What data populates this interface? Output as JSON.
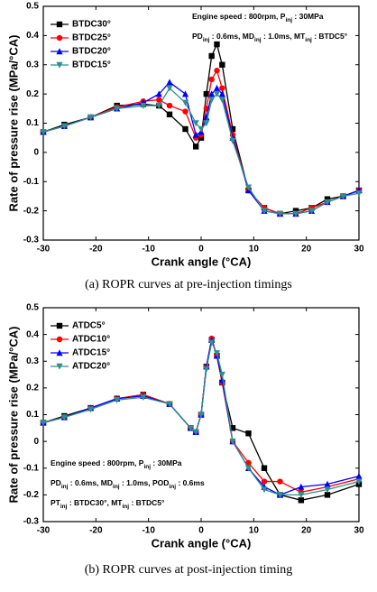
{
  "chart_data": [
    {
      "type": "line",
      "xlabel": "Crank angle (°CA)",
      "ylabel": "Rate of pressure rise (MPa/°CA)",
      "caption": "(a)  ROPR curves at pre-injection timings",
      "xlim": [
        -30,
        30
      ],
      "xticks": [
        -30,
        -20,
        -10,
        0,
        10,
        20,
        30
      ],
      "ylim": [
        -0.3,
        0.5
      ],
      "yticks": [
        -0.3,
        -0.2,
        -0.1,
        0.0,
        0.1,
        0.2,
        0.3,
        0.4,
        0.5
      ],
      "legend": "upper left",
      "annotation_corner": "upper right",
      "annotation": [
        [
          "Engine speed : 800rpm, P",
          "inj",
          " : 30MPa"
        ],
        [
          "PD",
          "inj",
          " : 0.6ms, MD",
          "inj",
          " : 1.0ms, MT",
          "inj",
          " : BTDC5°"
        ]
      ],
      "x": [
        -30,
        -26,
        -21,
        -16,
        -11,
        -8,
        -6,
        -3,
        -1,
        0,
        1,
        2,
        3,
        4,
        6,
        9,
        12,
        15,
        18,
        21,
        24,
        27,
        30
      ],
      "series": [
        {
          "name": "BTDC30°",
          "color": "#000000",
          "marker": "square",
          "values": [
            0.07,
            0.095,
            0.12,
            0.16,
            0.165,
            0.16,
            0.13,
            0.08,
            0.02,
            0.05,
            0.2,
            0.33,
            0.37,
            0.3,
            0.08,
            -0.13,
            -0.19,
            -0.21,
            -0.2,
            -0.19,
            -0.16,
            -0.15,
            -0.13
          ]
        },
        {
          "name": "BTDC25°",
          "color": "#ff0000",
          "marker": "circle",
          "values": [
            0.07,
            0.09,
            0.12,
            0.155,
            0.175,
            0.18,
            0.16,
            0.14,
            0.05,
            0.06,
            0.15,
            0.25,
            0.28,
            0.22,
            0.06,
            -0.13,
            -0.19,
            -0.21,
            -0.21,
            -0.19,
            -0.17,
            -0.15,
            -0.13
          ]
        },
        {
          "name": "BTDC20°",
          "color": "#0000ff",
          "marker": "triangle-up",
          "values": [
            0.07,
            0.09,
            0.12,
            0.15,
            0.17,
            0.2,
            0.24,
            0.2,
            0.06,
            0.07,
            0.12,
            0.2,
            0.22,
            0.2,
            0.05,
            -0.13,
            -0.2,
            -0.21,
            -0.21,
            -0.2,
            -0.17,
            -0.15,
            -0.13
          ]
        },
        {
          "name": "BTDC15°",
          "color": "#2f8f8f",
          "marker": "triangle-down",
          "values": [
            0.07,
            0.09,
            0.12,
            0.15,
            0.16,
            0.16,
            0.22,
            0.17,
            0.1,
            0.08,
            0.1,
            0.18,
            0.2,
            0.18,
            0.04,
            -0.12,
            -0.2,
            -0.21,
            -0.21,
            -0.2,
            -0.17,
            -0.15,
            -0.14
          ]
        }
      ]
    },
    {
      "type": "line",
      "xlabel": "Crank angle (°CA)",
      "ylabel": "Rate of pressure rise (MPa/°CA)",
      "caption": "(b)  ROPR curves at post-injection timing",
      "xlim": [
        -30,
        30
      ],
      "xticks": [
        -30,
        -20,
        -10,
        0,
        10,
        20,
        30
      ],
      "ylim": [
        -0.3,
        0.5
      ],
      "yticks": [
        -0.3,
        -0.2,
        -0.1,
        0.0,
        0.1,
        0.2,
        0.3,
        0.4,
        0.5
      ],
      "legend": "upper left",
      "annotation_corner": "lower left",
      "annotation": [
        [
          "Engine speed : 800rpm, P",
          "inj",
          " : 30MPa"
        ],
        [
          "PD",
          "inj",
          " : 0.6ms, MD",
          "inj",
          " : 1.0ms, POD",
          "inj",
          " : 0.6ms"
        ],
        [
          "PT",
          "inj",
          " : BTDC30°, MT",
          "inj",
          " : BTDC5°"
        ]
      ],
      "x": [
        -30,
        -26,
        -21,
        -16,
        -11,
        -6,
        -2,
        -1,
        0,
        1,
        2,
        3,
        4,
        6,
        9,
        12,
        15,
        19,
        24,
        30
      ],
      "series": [
        {
          "name": "ATDC5°",
          "color": "#000000",
          "marker": "square",
          "values": [
            0.07,
            0.095,
            0.125,
            0.16,
            0.175,
            0.14,
            0.05,
            0.035,
            0.1,
            0.28,
            0.38,
            0.32,
            0.22,
            0.05,
            0.03,
            -0.1,
            -0.2,
            -0.22,
            -0.2,
            -0.16
          ]
        },
        {
          "name": "ATDC10°",
          "color": "#ff0000",
          "marker": "circle",
          "values": [
            0.07,
            0.09,
            0.125,
            0.16,
            0.175,
            0.14,
            0.05,
            0.035,
            0.1,
            0.28,
            0.385,
            0.32,
            0.22,
            0.0,
            -0.08,
            -0.15,
            -0.15,
            -0.19,
            -0.17,
            -0.14
          ]
        },
        {
          "name": "ATDC15°",
          "color": "#0000ff",
          "marker": "triangle-up",
          "values": [
            0.07,
            0.09,
            0.125,
            0.16,
            0.17,
            0.14,
            0.05,
            0.035,
            0.1,
            0.28,
            0.38,
            0.32,
            0.23,
            0.0,
            -0.1,
            -0.17,
            -0.2,
            -0.17,
            -0.16,
            -0.13
          ]
        },
        {
          "name": "ATDC20°",
          "color": "#2f8f8f",
          "marker": "triangle-down",
          "values": [
            0.07,
            0.09,
            0.12,
            0.155,
            0.165,
            0.14,
            0.05,
            0.035,
            0.1,
            0.27,
            0.37,
            0.33,
            0.25,
            0.0,
            -0.1,
            -0.18,
            -0.2,
            -0.2,
            -0.18,
            -0.15
          ]
        }
      ]
    }
  ]
}
